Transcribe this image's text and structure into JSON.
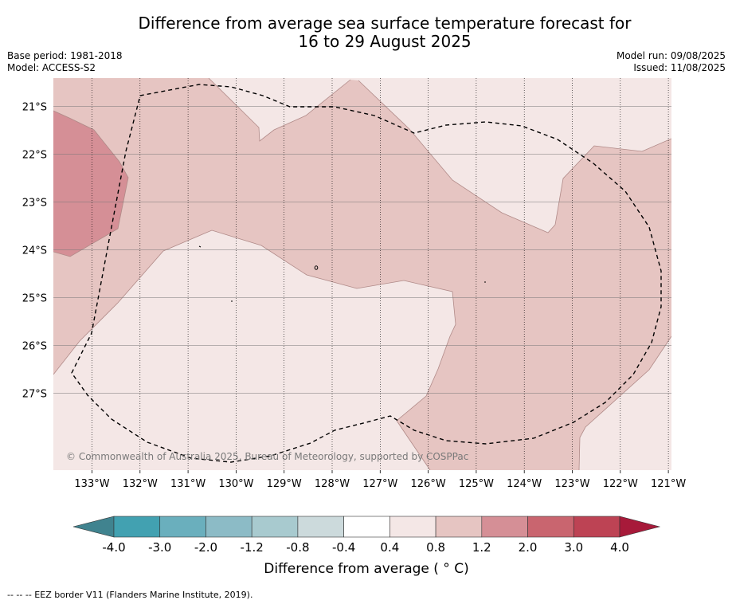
{
  "header": {
    "title_line1": "Difference from average sea surface temperature forecast for",
    "title_line2": "16 to 29 August 2025",
    "base_period": "Base period: 1981-2018",
    "model": "Model: ACCESS-S2",
    "model_run": "Model run: 09/08/2025",
    "issued": "Issued: 11/08/2025"
  },
  "map": {
    "lat_labels": [
      "21°S",
      "22°S",
      "23°S",
      "24°S",
      "25°S",
      "26°S",
      "27°S"
    ],
    "lon_labels": [
      "133°W",
      "132°W",
      "131°W",
      "130°W",
      "129°W",
      "128°W",
      "127°W",
      "126°W",
      "125°W",
      "124°W",
      "123°W",
      "122°W",
      "121°W"
    ],
    "copyright": "© Commonwealth of Australia 2025, Bureau of Meteorology, supported by COSPPac",
    "colors": {
      "bin_04_08": "#f4e7e6",
      "bin_08_12": "#e6c5c2",
      "bin_12_20": "#d58f96",
      "eez_line": "#000000"
    }
  },
  "colorbar": {
    "tick_labels": [
      "-4.0",
      "-3.0",
      "-2.0",
      "-1.2",
      "-0.8",
      "-0.4",
      "0.4",
      "0.8",
      "1.2",
      "2.0",
      "3.0",
      "4.0"
    ],
    "colors": [
      "#42a1b1",
      "#6aafbd",
      "#8cbbc6",
      "#a8cacf",
      "#ccdadc",
      "#ffffff",
      "#f4e7e6",
      "#e6c5c2",
      "#d58f96",
      "#c9656f",
      "#bd4354"
    ],
    "under_color": "#40838f",
    "over_color": "#a71a3a",
    "title": "Difference from average ( ° C)"
  },
  "footer": {
    "legend_text": "--  --  -- EEZ border V11 (Flanders Marine Institute, 2019)."
  }
}
